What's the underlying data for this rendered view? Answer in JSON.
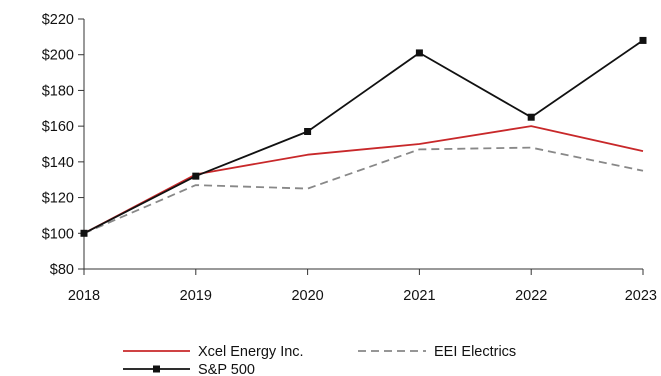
{
  "chart_data": {
    "type": "line",
    "x": [
      "2018",
      "2019",
      "2020",
      "2021",
      "2022",
      "2023"
    ],
    "series": [
      {
        "name": "Xcel Energy Inc.",
        "values": [
          100,
          133,
          144,
          150,
          160,
          146
        ],
        "color": "#c8282a",
        "style": "solid",
        "marker": "none"
      },
      {
        "name": "EEI Electrics",
        "values": [
          100,
          127,
          125,
          147,
          148,
          135
        ],
        "color": "#888888",
        "style": "dashed",
        "marker": "none"
      },
      {
        "name": "S&P 500",
        "values": [
          100,
          132,
          157,
          201,
          165,
          208
        ],
        "color": "#111111",
        "style": "solid",
        "marker": "square"
      }
    ],
    "y_ticks": [
      "$80",
      "$100",
      "$120",
      "$140",
      "$160",
      "$180",
      "$200",
      "$220"
    ],
    "ylim": [
      80,
      220
    ],
    "title": "",
    "xlabel": "",
    "ylabel": "",
    "grid": false,
    "legend_position": "bottom"
  }
}
